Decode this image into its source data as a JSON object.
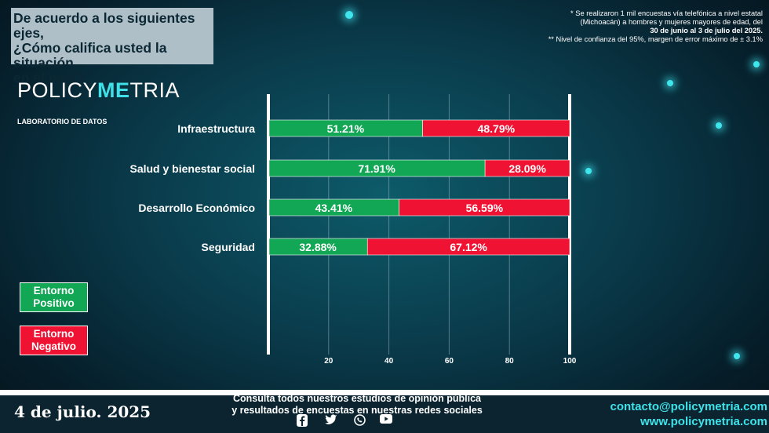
{
  "title": "De acuerdo a los siguientes ejes,\n¿Cómo califica usted la situación\n en el país?",
  "note": {
    "line1": "* Se realizaron 1 mil encuestas vía telefónica a nivel estatal",
    "line2": "(Michoacán) a hombres y mujeres mayores de edad, del",
    "line3": "30 de junio al 3 de julio del 2025.",
    "line4": "** Nivel de confianza del 95%, margen de error máximo de ± 3.1%"
  },
  "logo": {
    "part1": "POLICY",
    "part2": "ME",
    "part3": "TRIA",
    "subtitle": "LABORATORIO DE DATOS"
  },
  "legend": {
    "positive": "Entorno\nPositivo",
    "negative": "Entorno\nNegativo"
  },
  "footer": {
    "date": "4 de julio. 2025",
    "cta_line1": "Consulta todos nuestros estudios de opinión pública",
    "cta_line2": "y resultados de encuestas en nuestras redes sociales",
    "email": "contacto@policymetria.com",
    "website": "www.policymetria.com",
    "social_icons": [
      "facebook-icon",
      "twitter-icon",
      "whatsapp-icon",
      "youtube-icon"
    ]
  },
  "colors": {
    "positive": "#12a755",
    "negative": "#f01232",
    "accent": "#40e0e8"
  },
  "chart_data": {
    "type": "bar",
    "orientation": "horizontal",
    "stacked": true,
    "categories": [
      "Infraestructura",
      "Salud y bienestar social",
      "Desarrollo Económico",
      "Seguridad"
    ],
    "series": [
      {
        "name": "Entorno Positivo",
        "values": [
          51.21,
          71.91,
          43.41,
          32.88
        ],
        "labels": [
          "51.21%",
          "71.91%",
          "43.41%",
          "32.88%"
        ]
      },
      {
        "name": "Entorno Negativo",
        "values": [
          48.79,
          28.09,
          56.59,
          67.12
        ],
        "labels": [
          "48.79%",
          "28.09%",
          "56.59%",
          "67.12%"
        ]
      }
    ],
    "xlim": [
      0,
      100
    ],
    "xticks": [
      20,
      40,
      60,
      80,
      100
    ],
    "grid": true,
    "legend": "left"
  }
}
